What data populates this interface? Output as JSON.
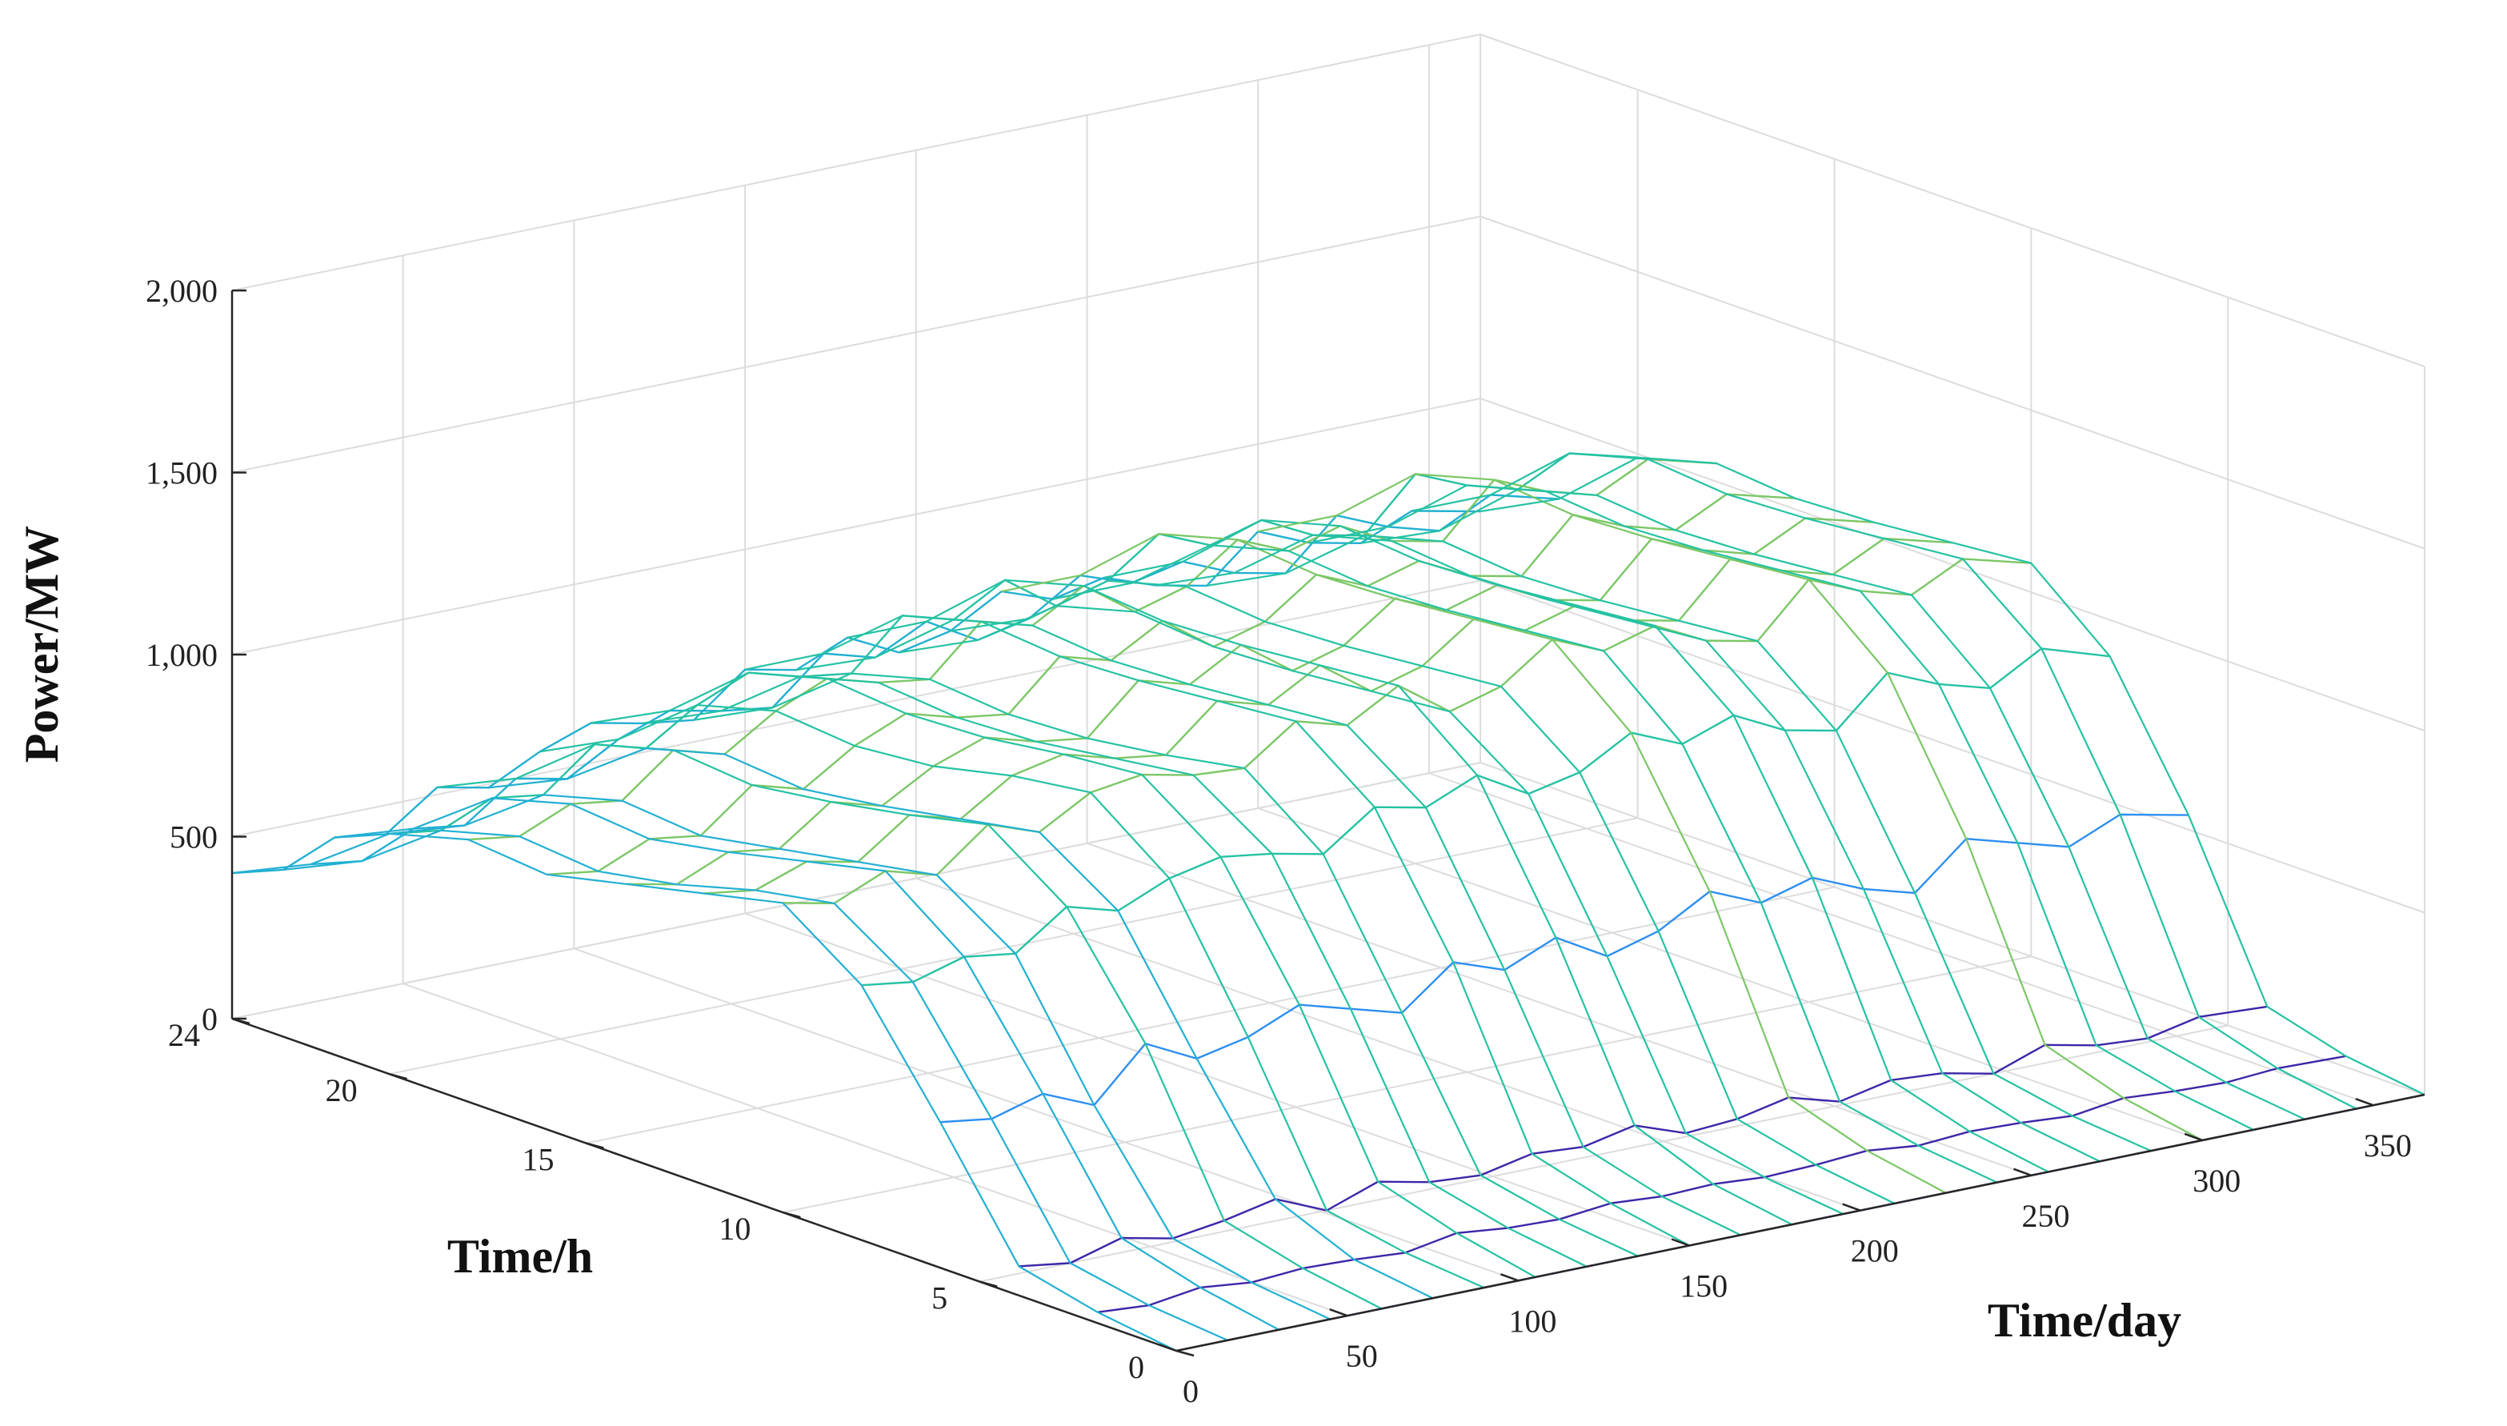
{
  "chart_data": {
    "type": "surface-mesh",
    "title": "",
    "xlabel": "Time/day",
    "ylabel": "Time/h",
    "zlabel": "Power/MW",
    "xlim": [
      0,
      365
    ],
    "ylim": [
      0,
      24
    ],
    "zlim": [
      0,
      2000
    ],
    "xticks": [
      0,
      50,
      100,
      150,
      200,
      250,
      300,
      350
    ],
    "yticks": [
      0,
      5,
      10,
      15,
      20,
      24
    ],
    "zticks": [
      0,
      500,
      1000,
      1500,
      2000
    ],
    "xtick_labels": [
      "0",
      "50",
      "100",
      "150",
      "200",
      "250",
      "300",
      "350"
    ],
    "ytick_labels": [
      "0",
      "5",
      "10",
      "15",
      "20",
      "24"
    ],
    "ztick_labels": [
      "0",
      "500",
      "1,000",
      "1,500",
      "2,000"
    ],
    "grid": true,
    "colormap": "parula",
    "colors": [
      "#3e26a8",
      "#4a52ff",
      "#2d8ff0",
      "#22b0d2",
      "#25c2a3",
      "#7bc766",
      "#bdbc3a",
      "#ecb92f"
    ],
    "series": [
      {
        "hours": [
          0,
          2,
          4,
          6,
          8,
          10,
          12,
          14,
          16,
          18,
          20,
          22,
          24
        ],
        "days": [
          0,
          15,
          30,
          45,
          60,
          75,
          90,
          105,
          120,
          135,
          150,
          165,
          180,
          195,
          210,
          225,
          240,
          255,
          270,
          285,
          300,
          315,
          330,
          345,
          365
        ],
        "z": [
          [
            0,
            0,
            0,
            0,
            0,
            0,
            0,
            0,
            0,
            0,
            0,
            0,
            0,
            0,
            0,
            0,
            0,
            0,
            0,
            0,
            0,
            0,
            0,
            0,
            0
          ],
          [
            30,
            20,
            40,
            25,
            35,
            30,
            20,
            45,
            30,
            25,
            40,
            30,
            35,
            25,
            30,
            40,
            25,
            35,
            30,
            20,
            40,
            30,
            25,
            35,
            30
          ],
          [
            80,
            60,
            100,
            70,
            90,
            120,
            60,
            110,
            80,
            70,
            100,
            90,
            120,
            70,
            80,
            110,
            70,
            100,
            90,
            60,
            110,
            80,
            70,
            100,
            90
          ],
          [
            400,
            380,
            420,
            360,
            500,
            430,
            460,
            520,
            480,
            440,
            550,
            500,
            560,
            480,
            520,
            600,
            540,
            580,
            520,
            480,
            600,
            560,
            520,
            580,
            540
          ],
          [
            700,
            680,
            720,
            700,
            800,
            760,
            820,
            850,
            830,
            800,
            900,
            870,
            930,
            850,
            880,
            960,
            900,
            950,
            880,
            850,
            980,
            920,
            880,
            960,
            900
          ],
          [
            850,
            820,
            880,
            840,
            950,
            900,
            980,
            1000,
            970,
            960,
            1060,
            1020,
            1100,
            1000,
            1040,
            1140,
            1080,
            1120,
            1050,
            1020,
            1160,
            1100,
            1060,
            1130,
            1080
          ],
          [
            800,
            780,
            830,
            800,
            900,
            860,
            950,
            980,
            940,
            920,
            1040,
            1000,
            1080,
            980,
            1020,
            1120,
            1060,
            1100,
            1030,
            1000,
            1140,
            1080,
            1040,
            1110,
            1060
          ],
          [
            750,
            720,
            780,
            760,
            860,
            820,
            900,
            950,
            910,
            890,
            1020,
            980,
            1060,
            960,
            1000,
            1100,
            1040,
            1080,
            1010,
            980,
            1120,
            1060,
            1020,
            1090,
            1040
          ],
          [
            700,
            680,
            740,
            720,
            830,
            790,
            880,
            940,
            900,
            880,
            1010,
            970,
            1050,
            950,
            990,
            1090,
            1030,
            1070,
            1000,
            970,
            1110,
            1050,
            1010,
            1080,
            1030
          ],
          [
            720,
            700,
            760,
            740,
            850,
            810,
            900,
            960,
            920,
            900,
            1030,
            990,
            1070,
            970,
            1010,
            1110,
            1050,
            1090,
            1020,
            990,
            1130,
            1070,
            1030,
            1100,
            1050
          ],
          [
            660,
            640,
            700,
            680,
            790,
            750,
            840,
            900,
            860,
            840,
            970,
            930,
            1010,
            910,
            950,
            1050,
            990,
            1030,
            960,
            930,
            1070,
            1010,
            970,
            1040,
            990
          ],
          [
            500,
            480,
            540,
            520,
            620,
            590,
            670,
            720,
            690,
            670,
            790,
            750,
            820,
            740,
            770,
            860,
            810,
            840,
            780,
            750,
            880,
            820,
            780,
            850,
            800
          ],
          [
            400,
            380,
            440,
            420,
            520,
            490,
            560,
            610,
            580,
            560,
            670,
            640,
            700,
            630,
            660,
            740,
            690,
            720,
            670,
            640,
            760,
            700,
            670,
            730,
            690
          ]
        ]
      }
    ]
  }
}
